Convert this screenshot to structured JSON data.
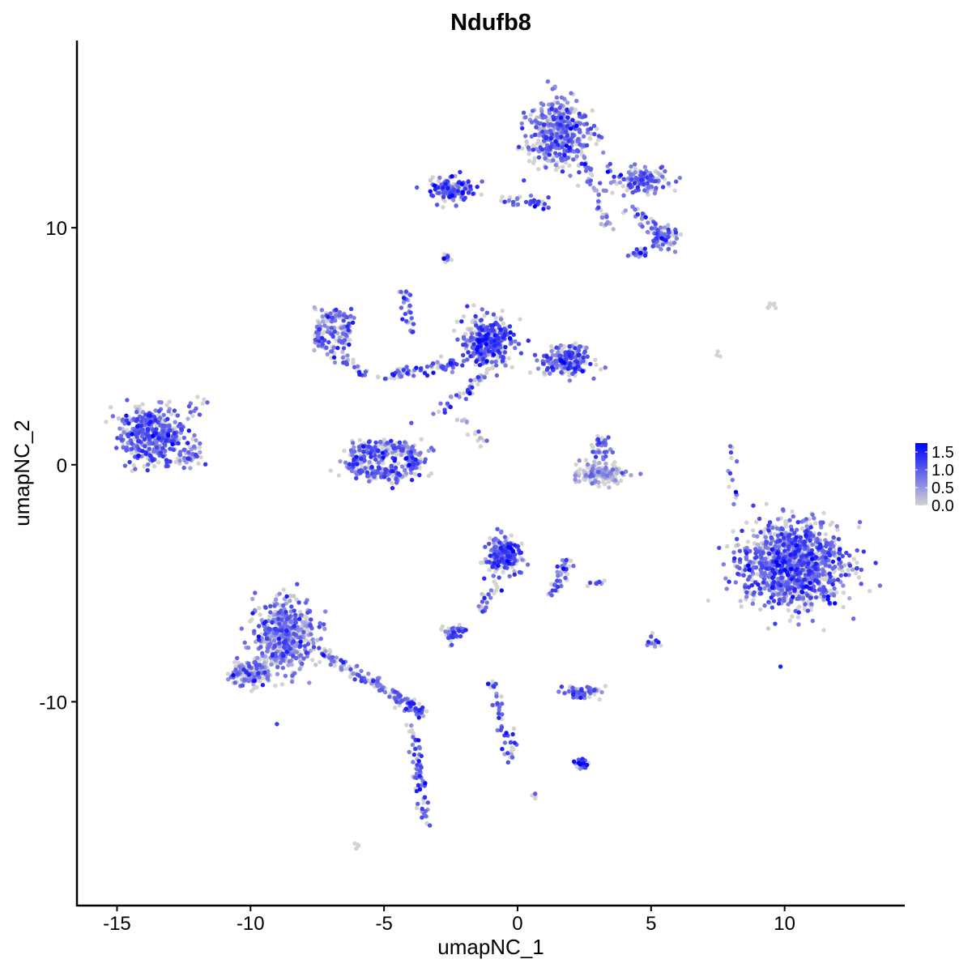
{
  "chart_data": {
    "type": "scatter",
    "title": "Ndufb8",
    "xlabel": "umapNC_1",
    "ylabel": "umapNC_2",
    "xlim": [
      -16.5,
      14.5
    ],
    "ylim": [
      -18.6,
      17.9
    ],
    "xticks": [
      -15,
      -10,
      -5,
      0,
      5,
      10
    ],
    "yticks": [
      -10,
      0,
      10
    ],
    "grid": false,
    "legend": {
      "placement": "right",
      "ticks": [
        0.0,
        0.5,
        1.0,
        1.5
      ],
      "tick_labels": [
        "0.0",
        "0.5",
        "1.0",
        "1.5"
      ],
      "range": [
        0,
        1.75
      ],
      "low_color": "#d3d3d3",
      "high_color": "#0000ff"
    },
    "clusters": [
      {
        "x": -13.7,
        "y": 1.2,
        "sx": 1.0,
        "sy": 1.0,
        "n": 420,
        "expr": 0.9
      },
      {
        "x": -12.2,
        "y": 0.4,
        "sx": 0.4,
        "sy": 0.4,
        "n": 40,
        "expr": 0.8
      },
      {
        "x": -6.9,
        "y": 5.6,
        "sx": 0.7,
        "sy": 0.9,
        "n": 150,
        "expr": 0.8,
        "ring": true
      },
      {
        "x": -5.0,
        "y": 0.2,
        "sx": 1.4,
        "sy": 0.8,
        "n": 320,
        "expr": 0.85,
        "ring": true
      },
      {
        "x": -1.1,
        "y": 5.2,
        "sx": 0.8,
        "sy": 0.9,
        "n": 330,
        "expr": 1.0
      },
      {
        "x": 1.9,
        "y": 4.4,
        "sx": 0.7,
        "sy": 0.5,
        "n": 220,
        "expr": 0.9
      },
      {
        "x": 1.6,
        "y": 14.0,
        "sx": 1.0,
        "sy": 1.2,
        "n": 420,
        "expr": 0.8
      },
      {
        "x": -2.5,
        "y": 11.6,
        "sx": 0.7,
        "sy": 0.45,
        "n": 140,
        "expr": 0.95
      },
      {
        "x": 4.6,
        "y": 12.0,
        "sx": 0.9,
        "sy": 0.5,
        "n": 140,
        "expr": 0.9
      },
      {
        "x": 5.5,
        "y": 9.6,
        "sx": 0.4,
        "sy": 0.4,
        "n": 70,
        "expr": 0.8
      },
      {
        "x": 4.6,
        "y": 8.9,
        "sx": 0.3,
        "sy": 0.2,
        "n": 25,
        "expr": 1.0
      },
      {
        "x": 10.4,
        "y": -4.2,
        "sx": 1.6,
        "sy": 1.5,
        "n": 1100,
        "expr": 0.9
      },
      {
        "x": -0.5,
        "y": -3.8,
        "sx": 0.55,
        "sy": 0.6,
        "n": 200,
        "expr": 1.0
      },
      {
        "x": -8.7,
        "y": -7.2,
        "sx": 0.9,
        "sy": 1.3,
        "n": 500,
        "expr": 0.7
      },
      {
        "x": -10.0,
        "y": -8.8,
        "sx": 0.6,
        "sy": 0.5,
        "n": 160,
        "expr": 0.7
      },
      {
        "x": 3.1,
        "y": -0.4,
        "sx": 0.8,
        "sy": 0.35,
        "n": 150,
        "expr": 0.35
      },
      {
        "x": 3.1,
        "y": 0.8,
        "sx": 0.3,
        "sy": 0.5,
        "n": 35,
        "expr": 0.8
      },
      {
        "x": 2.4,
        "y": -9.6,
        "sx": 0.6,
        "sy": 0.25,
        "n": 70,
        "expr": 0.8
      },
      {
        "x": -2.3,
        "y": -7.1,
        "sx": 0.35,
        "sy": 0.3,
        "n": 40,
        "expr": 0.8
      },
      {
        "x": 2.4,
        "y": -12.6,
        "sx": 0.25,
        "sy": 0.25,
        "n": 25,
        "expr": 1.1
      },
      {
        "x": -2.7,
        "y": 8.7,
        "sx": 0.15,
        "sy": 0.15,
        "n": 10,
        "expr": 0.7
      },
      {
        "x": 9.5,
        "y": 6.7,
        "sx": 0.2,
        "sy": 0.1,
        "n": 6,
        "expr": 0.0
      },
      {
        "x": 5.1,
        "y": -7.4,
        "sx": 0.15,
        "sy": 0.3,
        "n": 12,
        "expr": 1.0
      },
      {
        "x": 3.0,
        "y": -5.0,
        "sx": 0.3,
        "sy": 0.1,
        "n": 10,
        "expr": 0.9
      },
      {
        "x": -6.0,
        "y": -16.1,
        "sx": 0.1,
        "sy": 0.1,
        "n": 4,
        "expr": 1.0
      },
      {
        "x": 0.6,
        "y": -14.0,
        "sx": 0.1,
        "sy": 0.1,
        "n": 4,
        "expr": 1.0
      }
    ],
    "trails": [
      {
        "from": [
          -7.4,
          -7.8
        ],
        "to": [
          -4.5,
          -9.8
        ],
        "n": 90,
        "expr": 0.8
      },
      {
        "from": [
          -4.5,
          -9.8
        ],
        "to": [
          -3.6,
          -10.5
        ],
        "n": 50,
        "expr": 0.9
      },
      {
        "from": [
          -4.0,
          -11.0
        ],
        "to": [
          -3.4,
          -15.2
        ],
        "n": 70,
        "expr": 0.9
      },
      {
        "from": [
          -5.1,
          3.7
        ],
        "to": [
          -2.2,
          4.3
        ],
        "n": 70,
        "expr": 1.0
      },
      {
        "from": [
          -4.3,
          7.4
        ],
        "to": [
          -3.9,
          5.5
        ],
        "n": 30,
        "expr": 0.9
      },
      {
        "from": [
          -3.0,
          2.2
        ],
        "to": [
          -1.0,
          4.0
        ],
        "n": 40,
        "expr": 1.0
      },
      {
        "from": [
          -2.0,
          1.8
        ],
        "to": [
          -1.1,
          0.7
        ],
        "n": 15,
        "expr": 0.7
      },
      {
        "from": [
          -6.6,
          4.5
        ],
        "to": [
          -5.6,
          3.7
        ],
        "n": 25,
        "expr": 0.9
      },
      {
        "from": [
          -0.5,
          11.2
        ],
        "to": [
          1.2,
          11.0
        ],
        "n": 40,
        "expr": 0.9
      },
      {
        "from": [
          2.6,
          12.6
        ],
        "to": [
          3.5,
          10.0
        ],
        "n": 40,
        "expr": 0.8
      },
      {
        "from": [
          4.2,
          10.8
        ],
        "to": [
          5.5,
          9.6
        ],
        "n": 35,
        "expr": 0.8
      },
      {
        "from": [
          1.9,
          -4.0
        ],
        "to": [
          1.3,
          -5.5
        ],
        "n": 40,
        "expr": 0.9
      },
      {
        "from": [
          -0.7,
          -4.8
        ],
        "to": [
          -1.4,
          -6.2
        ],
        "n": 25,
        "expr": 1.0
      },
      {
        "from": [
          -0.9,
          -9.3
        ],
        "to": [
          -0.2,
          -12.3
        ],
        "n": 45,
        "expr": 1.0
      },
      {
        "from": [
          7.9,
          0.9
        ],
        "to": [
          8.1,
          -1.7
        ],
        "n": 14,
        "expr": 0.8
      },
      {
        "from": [
          -11.7,
          2.8
        ],
        "to": [
          -12.4,
          2.2
        ],
        "n": 10,
        "expr": 0.8
      },
      {
        "from": [
          7.5,
          4.7
        ],
        "to": [
          7.8,
          4.5
        ],
        "n": 3,
        "expr": 0.0
      }
    ]
  }
}
